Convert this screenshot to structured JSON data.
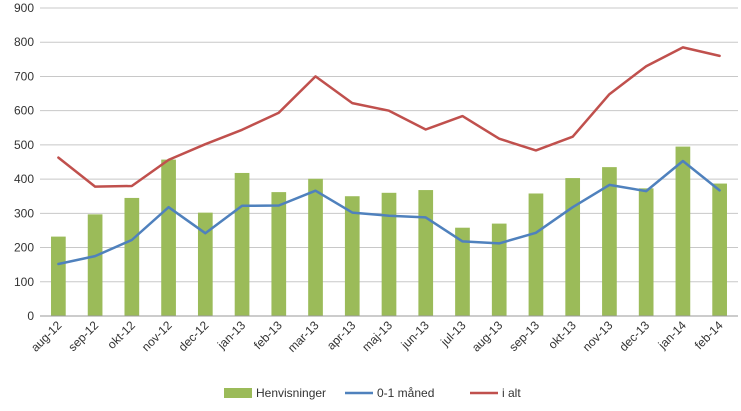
{
  "chart_data": {
    "type": "bar",
    "categories": [
      "aug-12",
      "sep-12",
      "okt-12",
      "nov-12",
      "dec-12",
      "jan-13",
      "feb-13",
      "mar-13",
      "apr-13",
      "maj-13",
      "jun-13",
      "jul-13",
      "aug-13",
      "sep-13",
      "okt-13",
      "nov-13",
      "dec-13",
      "jan-14",
      "feb-14"
    ],
    "series": [
      {
        "name": "Henvisninger",
        "kind": "bar",
        "color": "#9bbb59",
        "values": [
          232,
          297,
          345,
          457,
          302,
          418,
          362,
          401,
          350,
          360,
          368,
          258,
          270,
          358,
          403,
          435,
          373,
          495,
          387
        ]
      },
      {
        "name": "0-1 måned",
        "kind": "line",
        "color": "#4f81bd",
        "values": [
          152,
          175,
          222,
          318,
          242,
          322,
          323,
          366,
          302,
          293,
          288,
          218,
          212,
          243,
          318,
          383,
          365,
          453,
          367
        ]
      },
      {
        "name": "i alt",
        "kind": "line",
        "color": "#c0504d",
        "values": [
          463,
          378,
          380,
          456,
          502,
          544,
          594,
          700,
          622,
          600,
          545,
          584,
          518,
          484,
          524,
          648,
          730,
          785,
          760
        ]
      }
    ],
    "y_ticks": [
      "0",
      "100",
      "200",
      "300",
      "400",
      "500",
      "600",
      "700",
      "800",
      "900"
    ],
    "ylim": [
      0,
      900
    ],
    "grid": true,
    "legend_position": "bottom"
  }
}
